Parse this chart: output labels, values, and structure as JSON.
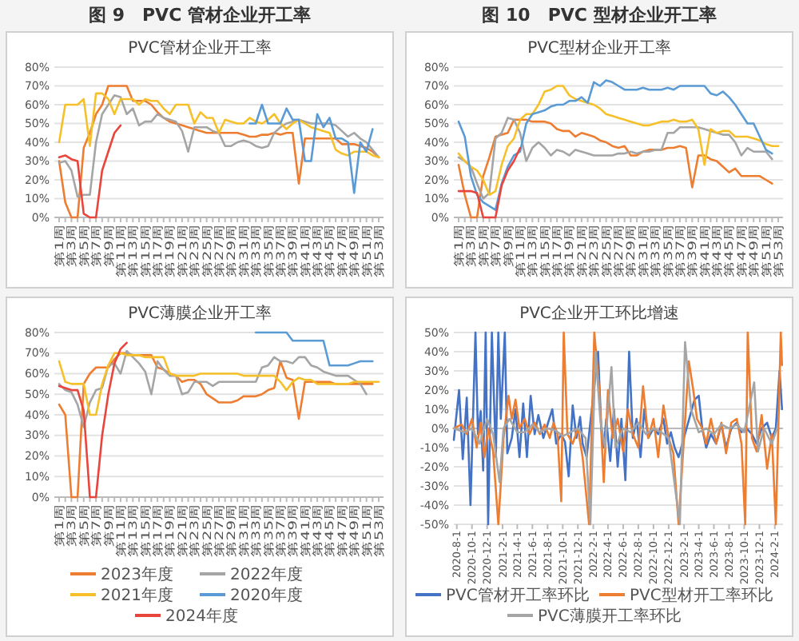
{
  "chart_data": [
    {
      "type": "line",
      "title": "图 9　PVC 管材企业开工率",
      "subtitle": "PVC管材企业开工率",
      "categories": [
        "第1周",
        null,
        "第3周",
        null,
        "第5周",
        null,
        "第7周",
        null,
        "第9周",
        null,
        "第11周",
        null,
        "第13周",
        null,
        "第15周",
        null,
        "第17周",
        null,
        "第19周",
        null,
        "第21周",
        null,
        "第23周",
        null,
        "第25周",
        null,
        "第27周",
        null,
        "第29周",
        null,
        "第31周",
        null,
        "第33周",
        null,
        "第35周",
        null,
        "第37周",
        null,
        "第39周",
        null,
        "第41周",
        null,
        "第43周",
        null,
        "第45周",
        null,
        "第47周",
        null,
        "第49周",
        null,
        "第51周",
        null,
        "第53周"
      ],
      "ylim": [
        0,
        80
      ],
      "yticks": [
        {
          "value": 0,
          "label": "0%"
        },
        {
          "value": 10,
          "label": "10%"
        },
        {
          "value": 20,
          "label": "20%"
        },
        {
          "value": 30,
          "label": "30%"
        },
        {
          "value": 40,
          "label": "40%"
        },
        {
          "value": 50,
          "label": "50%"
        },
        {
          "value": 60,
          "label": "60%"
        },
        {
          "value": 70,
          "label": "70%"
        },
        {
          "value": 80,
          "label": "80%"
        }
      ],
      "grid": "y",
      "series": [
        {
          "color": "#ed7d31",
          "values": [
            30,
            8,
            0,
            0,
            37,
            45,
            55,
            60,
            70,
            70,
            70,
            70,
            62,
            62,
            62,
            60,
            56,
            53,
            51,
            50,
            49,
            48,
            47,
            46,
            45,
            45,
            45,
            45,
            45,
            45,
            44,
            43,
            43,
            44,
            44,
            45,
            44,
            45,
            45,
            18,
            42,
            42,
            42,
            42,
            42,
            42,
            39,
            39,
            39,
            38,
            37,
            35,
            32
          ]
        },
        {
          "color": "#a5a5a5",
          "values": [
            29,
            30,
            25,
            11,
            12,
            12,
            40,
            55,
            60,
            65,
            64,
            55,
            58,
            49,
            51,
            51,
            55,
            53,
            52,
            51,
            46,
            35,
            48,
            48,
            48,
            46,
            45,
            38,
            38,
            40,
            41,
            40,
            38,
            37,
            38,
            45,
            48,
            50,
            51,
            52,
            51,
            50,
            50,
            50,
            50,
            49,
            46,
            43,
            45,
            42,
            40,
            36,
            32
          ]
        },
        {
          "color": "#f5c02a",
          "values": [
            40,
            60,
            60,
            60,
            63,
            38,
            66,
            66,
            63,
            55,
            63,
            63,
            63,
            60,
            63,
            62,
            62,
            58,
            55,
            60,
            60,
            60,
            50,
            56,
            53,
            53,
            45,
            52,
            51,
            50,
            50,
            53,
            51,
            50,
            52,
            55,
            50,
            47,
            50,
            52,
            50,
            48,
            47,
            46,
            45,
            36,
            34,
            33,
            35,
            35,
            35,
            33,
            32
          ]
        },
        {
          "color": "#5b9bd5",
          "values": [
            null,
            null,
            null,
            null,
            null,
            null,
            null,
            null,
            null,
            null,
            null,
            null,
            null,
            null,
            null,
            null,
            null,
            null,
            null,
            null,
            null,
            null,
            null,
            null,
            null,
            null,
            null,
            null,
            null,
            null,
            null,
            50,
            50,
            60,
            50,
            50,
            50,
            58,
            52,
            52,
            30,
            30,
            55,
            48,
            53,
            42,
            42,
            40,
            13,
            40,
            35,
            47,
            null
          ]
        },
        {
          "color": "#e8453c",
          "values": [
            32,
            33,
            31,
            30,
            2,
            0,
            0,
            25,
            35,
            45,
            49,
            null,
            null,
            null,
            null,
            null,
            null,
            null,
            null,
            null,
            null,
            null,
            null,
            null,
            null,
            null,
            null,
            null,
            null,
            null,
            null,
            null,
            null,
            null,
            null,
            null,
            null,
            null,
            null,
            null,
            null,
            null,
            null,
            null,
            null,
            null,
            null,
            null,
            null,
            null,
            null,
            null,
            null
          ]
        }
      ]
    },
    {
      "type": "line",
      "title": "图 10　PVC 型材企业开工率",
      "subtitle": "PVC型材企业开工率",
      "categories": [
        "第1周",
        null,
        "第3周",
        null,
        "第5周",
        null,
        "第7周",
        null,
        "第9周",
        null,
        "第11周",
        null,
        "第13周",
        null,
        "第15周",
        null,
        "第17周",
        null,
        "第19周",
        null,
        "第21周",
        null,
        "第23周",
        null,
        "第25周",
        null,
        "第27周",
        null,
        "第29周",
        null,
        "第31周",
        null,
        "第33周",
        null,
        "第35周",
        null,
        "第37周",
        null,
        "第39周",
        null,
        "第41周",
        null,
        "第43周",
        null,
        "第45周",
        null,
        "第47周",
        null,
        "第49周",
        null,
        "第51周",
        null,
        "第53周"
      ],
      "ylim": [
        0,
        80
      ],
      "yticks": [
        {
          "value": 0,
          "label": "0%"
        },
        {
          "value": 10,
          "label": "10%"
        },
        {
          "value": 20,
          "label": "20%"
        },
        {
          "value": 30,
          "label": "30%"
        },
        {
          "value": 40,
          "label": "40%"
        },
        {
          "value": 50,
          "label": "50%"
        },
        {
          "value": 60,
          "label": "60%"
        },
        {
          "value": 70,
          "label": "70%"
        },
        {
          "value": 80,
          "label": "80%"
        }
      ],
      "grid": "y",
      "series": [
        {
          "color": "#ed7d31",
          "values": [
            28,
            12,
            0,
            0,
            22,
            32,
            43,
            44,
            45,
            52,
            52,
            52,
            51,
            51,
            51,
            50,
            47,
            46,
            46,
            43,
            45,
            44,
            43,
            41,
            40,
            38,
            37,
            38,
            33,
            33,
            35,
            36,
            36,
            36,
            37,
            37,
            38,
            37,
            16,
            33,
            33,
            31,
            30,
            27,
            24,
            26,
            22,
            22,
            22,
            22,
            20,
            18,
            null
          ]
        },
        {
          "color": "#a5a5a5",
          "values": [
            32,
            30,
            27,
            18,
            10,
            13,
            42,
            45,
            53,
            52,
            45,
            30,
            37,
            40,
            37,
            33,
            36,
            35,
            33,
            36,
            35,
            34,
            33,
            33,
            33,
            33,
            34,
            34,
            35,
            34,
            35,
            35,
            36,
            36,
            45,
            45,
            48,
            48,
            48,
            48,
            47,
            46,
            45,
            44,
            44,
            40,
            33,
            37,
            35,
            35,
            35,
            31,
            null
          ]
        },
        {
          "color": "#f5c02a",
          "values": [
            34,
            30,
            27,
            25,
            20,
            12,
            14,
            28,
            38,
            42,
            52,
            55,
            55,
            60,
            67,
            68,
            70,
            70,
            65,
            63,
            62,
            61,
            60,
            58,
            55,
            54,
            53,
            52,
            51,
            50,
            49,
            49,
            50,
            51,
            51,
            52,
            51,
            51,
            52,
            47,
            28,
            47,
            45,
            46,
            46,
            43,
            43,
            43,
            42,
            41,
            39,
            38,
            38
          ]
        },
        {
          "color": "#5b9bd5",
          "values": [
            51,
            43,
            22,
            12,
            8,
            6,
            4,
            18,
            27,
            33,
            35,
            50,
            55,
            56,
            57,
            59,
            60,
            60,
            62,
            62,
            64,
            61,
            72,
            70,
            73,
            72,
            70,
            68,
            68,
            68,
            69,
            68,
            68,
            68,
            69,
            68,
            70,
            70,
            70,
            70,
            70,
            66,
            65,
            67,
            64,
            60,
            55,
            50,
            50,
            43,
            36,
            34,
            null
          ]
        },
        {
          "color": "#e8453c",
          "values": [
            14,
            14,
            14,
            13,
            0,
            0,
            0,
            17,
            25,
            30,
            37,
            null,
            null,
            null,
            null,
            null,
            null,
            null,
            null,
            null,
            null,
            null,
            null,
            null,
            null,
            null,
            null,
            null,
            null,
            null,
            null,
            null,
            null,
            null,
            null,
            null,
            null,
            null,
            null,
            null,
            null,
            null,
            null,
            null,
            null,
            null,
            null,
            null,
            null,
            null,
            null,
            null,
            null
          ]
        }
      ]
    },
    {
      "type": "line",
      "title": "PVC薄膜企业开工率",
      "categories": [
        "第1周",
        null,
        "第3周",
        null,
        "第5周",
        null,
        "第7周",
        null,
        "第9周",
        null,
        "第11周",
        null,
        "第13周",
        null,
        "第15周",
        null,
        "第17周",
        null,
        "第19周",
        null,
        "第21周",
        null,
        "第23周",
        null,
        "第25周",
        null,
        "第27周",
        null,
        "第29周",
        null,
        "第31周",
        null,
        "第33周",
        null,
        "第35周",
        null,
        "第37周",
        null,
        "第39周",
        null,
        "第41周",
        null,
        "第43周",
        null,
        "第45周",
        null,
        "第47周",
        null,
        "第49周",
        null,
        "第51周",
        null,
        "第53周"
      ],
      "ylim": [
        0,
        80
      ],
      "yticks": [
        {
          "value": 0,
          "label": "0%"
        },
        {
          "value": 10,
          "label": "10%"
        },
        {
          "value": 20,
          "label": "20%"
        },
        {
          "value": 30,
          "label": "30%"
        },
        {
          "value": 40,
          "label": "40%"
        },
        {
          "value": 50,
          "label": "50%"
        },
        {
          "value": 60,
          "label": "60%"
        },
        {
          "value": 70,
          "label": "70%"
        },
        {
          "value": 80,
          "label": "80%"
        }
      ],
      "grid": "y",
      "legend": "bottom",
      "series": [
        {
          "name": "2023年度",
          "color": "#ed7d31",
          "values": [
            45,
            40,
            0,
            0,
            55,
            60,
            63,
            63,
            63,
            67,
            70,
            70,
            69,
            69,
            69,
            69,
            63,
            62,
            60,
            59,
            56,
            57,
            57,
            55,
            50,
            48,
            46,
            46,
            46,
            47,
            49,
            49,
            49,
            50,
            52,
            53,
            66,
            58,
            57,
            38,
            56,
            56,
            56,
            56,
            56,
            55,
            55,
            55,
            55,
            55,
            55,
            55,
            null
          ]
        },
        {
          "name": "2022年度",
          "color": "#a5a5a5",
          "values": [
            55,
            52,
            51,
            45,
            34,
            46,
            52,
            53,
            64,
            65,
            60,
            71,
            68,
            65,
            61,
            50,
            66,
            62,
            59,
            59,
            50,
            51,
            56,
            56,
            56,
            54,
            56,
            56,
            56,
            56,
            56,
            56,
            56,
            63,
            64,
            68,
            66,
            66,
            65,
            68,
            68,
            64,
            63,
            61,
            60,
            59,
            59,
            59,
            57,
            55,
            50,
            null,
            null
          ]
        },
        {
          "name": "2021年度",
          "color": "#f5c02a",
          "values": [
            66,
            56,
            55,
            55,
            55,
            40,
            40,
            55,
            64,
            70,
            70,
            69,
            69,
            69,
            68,
            68,
            68,
            68,
            60,
            59,
            59,
            59,
            59,
            60,
            60,
            60,
            60,
            60,
            60,
            60,
            59,
            59,
            59,
            59,
            59,
            59,
            56,
            52,
            56,
            58,
            57,
            57,
            55,
            55,
            55,
            55,
            55,
            55,
            56,
            56,
            56,
            56,
            56
          ]
        },
        {
          "name": "2020年度",
          "color": "#5b9bd5",
          "values": [
            null,
            null,
            null,
            null,
            null,
            null,
            null,
            null,
            null,
            null,
            null,
            null,
            null,
            null,
            null,
            null,
            null,
            null,
            null,
            null,
            null,
            null,
            null,
            null,
            null,
            null,
            null,
            null,
            null,
            null,
            null,
            null,
            80,
            80,
            80,
            80,
            80,
            80,
            76,
            76,
            76,
            76,
            76,
            76,
            64,
            64,
            64,
            64,
            65,
            66,
            66,
            66,
            null
          ]
        },
        {
          "name": "2024年度",
          "color": "#e8453c",
          "values": [
            54,
            53,
            52,
            52,
            42,
            0,
            0,
            30,
            50,
            65,
            72,
            75,
            null,
            null,
            null,
            null,
            null,
            null,
            null,
            null,
            null,
            null,
            null,
            null,
            null,
            null,
            null,
            null,
            null,
            null,
            null,
            null,
            null,
            null,
            null,
            null,
            null,
            null,
            null,
            null,
            null,
            null,
            null,
            null,
            null,
            null,
            null,
            null,
            null,
            null,
            null,
            null,
            null
          ]
        }
      ]
    },
    {
      "type": "line",
      "title": "PVC企业开工环比增速",
      "xlim": [
        "2020-07-20",
        "2024-03-05"
      ],
      "xticks": [
        {
          "value": "2020-08-01",
          "label": "2020-8-1"
        },
        {
          "value": "2020-10-01",
          "label": "2020-10-1"
        },
        {
          "value": "2020-12-01",
          "label": "2020-12-1"
        },
        {
          "value": "2021-02-01",
          "label": "2021-2-1"
        },
        {
          "value": "2021-04-01",
          "label": "2021-4-1"
        },
        {
          "value": "2021-06-01",
          "label": "2021-6-1"
        },
        {
          "value": "2021-08-01",
          "label": "2021-8-1"
        },
        {
          "value": "2021-10-01",
          "label": "2021-10-1"
        },
        {
          "value": "2021-12-01",
          "label": "2021-12-1"
        },
        {
          "value": "2022-02-01",
          "label": "2022-2-1"
        },
        {
          "value": "2022-04-01",
          "label": "2022-4-1"
        },
        {
          "value": "2022-06-01",
          "label": "2022-6-1"
        },
        {
          "value": "2022-08-01",
          "label": "2022-8-1"
        },
        {
          "value": "2022-10-01",
          "label": "2022-10-1"
        },
        {
          "value": "2022-12-01",
          "label": "2022-12-1"
        },
        {
          "value": "2023-02-01",
          "label": "2023-2-1"
        },
        {
          "value": "2023-04-01",
          "label": "2023-4-1"
        },
        {
          "value": "2023-06-01",
          "label": "2023-6-1"
        },
        {
          "value": "2023-08-01",
          "label": "2023-8-1"
        },
        {
          "value": "2023-10-01",
          "label": "2023-10-1"
        },
        {
          "value": "2023-12-01",
          "label": "2023-12-1"
        },
        {
          "value": "2024-02-01",
          "label": "2024-2-1"
        }
      ],
      "ylim": [
        -50,
        50
      ],
      "yticks": [
        {
          "value": -50,
          "label": "-50%"
        },
        {
          "value": -40,
          "label": "-40%"
        },
        {
          "value": -30,
          "label": "-30%"
        },
        {
          "value": -20,
          "label": "-20%"
        },
        {
          "value": -10,
          "label": "-10%"
        },
        {
          "value": 0,
          "label": "0%"
        },
        {
          "value": 10,
          "label": "10%"
        },
        {
          "value": 20,
          "label": "20%"
        },
        {
          "value": 30,
          "label": "30%"
        },
        {
          "value": 40,
          "label": "40%"
        },
        {
          "value": 50,
          "label": "50%"
        }
      ],
      "grid": "y",
      "legend": "bottom",
      "series": [
        {
          "name": "PVC管材开工率环比",
          "color": "#4472c4",
          "x": [
            "2020-07-20",
            "2020-08-10",
            "2020-08-25",
            "2020-09-10",
            "2020-09-25",
            "2020-10-15",
            "2020-10-25",
            "2020-11-05",
            "2020-11-15",
            "2020-11-25",
            "2020-12-05",
            "2020-12-20",
            "2021-01-05",
            "2021-01-15",
            "2021-01-25",
            "2021-02-10",
            "2021-02-20",
            "2021-03-10",
            "2021-03-25",
            "2021-04-10",
            "2021-04-25",
            "2021-05-10",
            "2021-05-25",
            "2021-06-10",
            "2021-06-25",
            "2021-07-15",
            "2021-08-01",
            "2021-08-20",
            "2021-09-05",
            "2021-09-25",
            "2021-10-10",
            "2021-10-25",
            "2021-11-10",
            "2021-11-25",
            "2021-12-10",
            "2021-12-20",
            "2022-01-05",
            "2022-02-20",
            "2022-03-05",
            "2022-03-15",
            "2022-03-25",
            "2022-04-10",
            "2022-04-25",
            "2022-05-10",
            "2022-05-25",
            "2022-06-10",
            "2022-06-25",
            "2022-07-10",
            "2022-07-25",
            "2022-08-10",
            "2022-08-25",
            "2022-09-10",
            "2022-10-01",
            "2022-10-20",
            "2022-11-10",
            "2022-11-25",
            "2022-12-10",
            "2022-12-25",
            "2023-01-10",
            "2023-03-15",
            "2023-04-01",
            "2023-04-15",
            "2023-05-01",
            "2023-05-20",
            "2023-06-10",
            "2023-07-01",
            "2023-07-20",
            "2023-08-10",
            "2023-09-01",
            "2023-09-20",
            "2023-10-10",
            "2023-11-01",
            "2023-11-20",
            "2023-12-10",
            "2024-01-01",
            "2024-01-20",
            "2024-02-05",
            "2024-02-20",
            "2024-03-01"
          ],
          "values": [
            -6,
            20,
            -16,
            16,
            -40,
            50,
            -3,
            9,
            -22,
            50,
            -50,
            50,
            -15,
            50,
            5,
            50,
            -13,
            -5,
            10,
            -15,
            13,
            -15,
            17,
            -3,
            7,
            -5,
            2,
            10,
            -8,
            -3,
            -7,
            -25,
            12,
            -5,
            6,
            -8,
            -15,
            40,
            0,
            -10,
            5,
            -17,
            10,
            -20,
            5,
            -27,
            40,
            -5,
            5,
            -15,
            10,
            -5,
            0,
            -3,
            5,
            -8,
            -2,
            -10,
            -15,
            15,
            17,
            0,
            -10,
            -3,
            -8,
            2,
            -10,
            0,
            3,
            -2,
            0,
            -3,
            -8,
            0,
            3,
            -5,
            0,
            30,
            10
          ]
        },
        {
          "name": "PVC型材开工率环比",
          "color": "#ed7d31",
          "x": [
            "2020-07-20",
            "2020-08-20",
            "2020-09-10",
            "2020-10-01",
            "2020-10-20",
            "2020-11-05",
            "2020-11-20",
            "2020-12-05",
            "2020-12-25",
            "2021-01-15",
            "2021-02-05",
            "2021-02-25",
            "2021-03-10",
            "2021-03-25",
            "2021-04-10",
            "2021-05-01",
            "2021-05-20",
            "2021-06-10",
            "2021-07-01",
            "2021-07-20",
            "2021-08-10",
            "2021-08-25",
            "2021-09-10",
            "2021-09-25",
            "2021-10-05",
            "2021-10-20",
            "2021-11-10",
            "2021-12-01",
            "2021-12-20",
            "2022-01-15",
            "2022-02-05",
            "2022-02-25",
            "2022-03-15",
            "2022-04-01",
            "2022-04-20",
            "2022-05-10",
            "2022-06-01",
            "2022-06-20",
            "2022-07-10",
            "2022-08-01",
            "2022-08-20",
            "2022-09-10",
            "2022-10-01",
            "2022-10-20",
            "2022-11-10",
            "2022-12-01",
            "2022-12-20",
            "2023-01-10",
            "2023-02-20",
            "2023-03-10",
            "2023-03-25",
            "2023-04-15",
            "2023-05-01",
            "2023-05-20",
            "2023-06-10",
            "2023-07-01",
            "2023-07-20",
            "2023-08-10",
            "2023-09-01",
            "2023-09-20",
            "2023-10-05",
            "2023-10-15",
            "2023-11-01",
            "2023-11-20",
            "2023-12-10",
            "2024-01-01",
            "2024-01-20",
            "2024-02-05",
            "2024-02-15",
            "2024-02-25",
            "2024-03-01"
          ],
          "values": [
            0,
            2,
            -3,
            5,
            -10,
            3,
            -15,
            0,
            -12,
            -50,
            -5,
            17,
            5,
            15,
            0,
            5,
            -3,
            3,
            -3,
            2,
            -5,
            3,
            -3,
            -38,
            50,
            -3,
            -8,
            0,
            -15,
            -50,
            50,
            20,
            -28,
            20,
            -5,
            5,
            -12,
            10,
            -3,
            -10,
            22,
            -5,
            5,
            -15,
            12,
            -5,
            -13,
            -50,
            35,
            20,
            5,
            0,
            -8,
            5,
            -8,
            3,
            -13,
            3,
            5,
            -8,
            -50,
            50,
            -5,
            -12,
            7,
            -21,
            -3,
            -50,
            0,
            50,
            33
          ]
        },
        {
          "name": "PVC薄膜开工率环比",
          "color": "#a5a5a5",
          "x": [
            "2020-07-20",
            "2020-09-01",
            "2020-10-01",
            "2020-11-01",
            "2020-12-01",
            "2020-12-25",
            "2021-01-20",
            "2021-02-05",
            "2021-03-01",
            "2021-04-01",
            "2021-05-01",
            "2021-06-01",
            "2021-07-01",
            "2021-08-01",
            "2021-09-01",
            "2021-10-01",
            "2021-11-01",
            "2021-12-01",
            "2022-01-01",
            "2022-01-20",
            "2022-02-10",
            "2022-03-01",
            "2022-03-20",
            "2022-04-15",
            "2022-05-01",
            "2022-06-01",
            "2022-07-01",
            "2022-08-01",
            "2022-09-01",
            "2022-10-01",
            "2022-11-01",
            "2022-12-01",
            "2023-01-15",
            "2023-02-05",
            "2023-03-01",
            "2023-04-01",
            "2023-05-01",
            "2023-06-01",
            "2023-07-01",
            "2023-08-01",
            "2023-09-01",
            "2023-10-01",
            "2023-11-10",
            "2023-11-25",
            "2023-12-20",
            "2024-01-20",
            "2024-02-10"
          ],
          "values": [
            0,
            -2,
            0,
            -8,
            5,
            -3,
            -28,
            0,
            5,
            -2,
            -2,
            2,
            -2,
            0,
            -1,
            -4,
            -2,
            0,
            -5,
            -50,
            40,
            5,
            -10,
            32,
            -10,
            0,
            -2,
            3,
            -3,
            0,
            -2,
            -5,
            -50,
            45,
            10,
            -2,
            0,
            -3,
            2,
            0,
            2,
            -2,
            24,
            -12,
            0,
            -8,
            0
          ]
        }
      ]
    }
  ]
}
